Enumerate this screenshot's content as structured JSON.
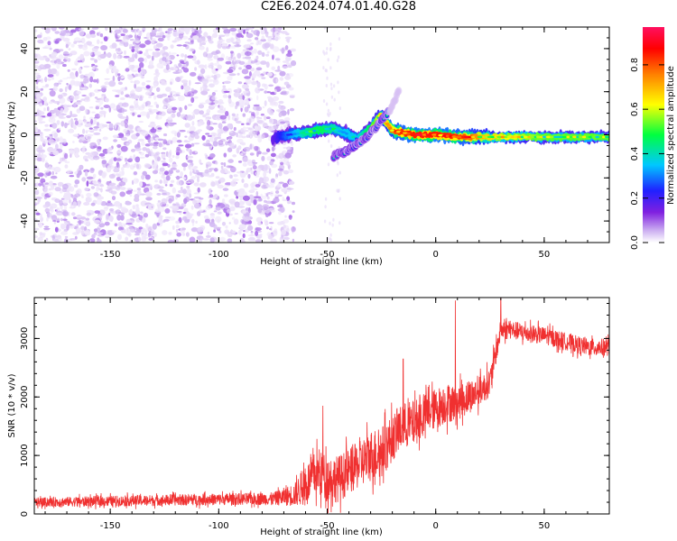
{
  "figure_title": "C2E6.2024.074.01.40.G28",
  "chart_data": [
    {
      "type": "heatmap",
      "title": "",
      "xlabel": "Height of straight line (km)",
      "ylabel": "Frequency (Hz)",
      "xlim": [
        -185,
        80
      ],
      "ylim": [
        -50,
        50
      ],
      "x_ticks": [
        -150,
        -100,
        -50,
        0,
        50
      ],
      "y_ticks": [
        -40,
        -20,
        0,
        20,
        40
      ],
      "colorbar": {
        "label": "Normalized spectral amplitude",
        "range": [
          0,
          0.97
        ],
        "ticks": [
          0.0,
          0.2,
          0.4,
          0.6,
          0.8
        ],
        "colormap": [
          "#ffffff",
          "#c8a8f0",
          "#8020e0",
          "#2020ff",
          "#00c8ff",
          "#00ff40",
          "#ffff00",
          "#ff8000",
          "#ff0000",
          "#ff1060"
        ]
      },
      "noise_region": {
        "x": [
          -185,
          -68
        ],
        "freq": [
          -50,
          50
        ],
        "amplitude": "low"
      },
      "signal_track": [
        {
          "x": -75,
          "freq": -2,
          "amp": 0.25
        },
        {
          "x": -68,
          "freq": 0,
          "amp": 0.4
        },
        {
          "x": -60,
          "freq": 1,
          "amp": 0.5
        },
        {
          "x": -55,
          "freq": 2,
          "amp": 0.55
        },
        {
          "x": -48,
          "freq": 3,
          "amp": 0.5
        },
        {
          "x": -42,
          "freq": 1,
          "amp": 0.45
        },
        {
          "x": -36,
          "freq": -2,
          "amp": 0.45
        },
        {
          "x": -30,
          "freq": 3,
          "amp": 0.55
        },
        {
          "x": -25,
          "freq": 9,
          "amp": 0.7
        },
        {
          "x": -20,
          "freq": 2,
          "amp": 0.8
        },
        {
          "x": -10,
          "freq": 0,
          "amp": 0.9
        },
        {
          "x": 0,
          "freq": 0,
          "amp": 0.9
        },
        {
          "x": 10,
          "freq": -1,
          "amp": 0.85
        },
        {
          "x": 25,
          "freq": -1,
          "amp": 0.7
        },
        {
          "x": 50,
          "freq": -1,
          "amp": 0.6
        },
        {
          "x": 80,
          "freq": -1,
          "amp": 0.6
        }
      ],
      "secondary_branch": [
        {
          "x": -47,
          "freq": -10
        },
        {
          "x": -40,
          "freq": -7
        },
        {
          "x": -33,
          "freq": -2
        },
        {
          "x": -27,
          "freq": 4
        },
        {
          "x": -22,
          "freq": 10
        },
        {
          "x": -17,
          "freq": 20
        }
      ]
    },
    {
      "type": "line",
      "title": "",
      "xlabel": "Height of straight line (km)",
      "ylabel": "SNR (10 * v/v)",
      "xlim": [
        -185,
        80
      ],
      "ylim": [
        0,
        3700
      ],
      "x_ticks": [
        -150,
        -100,
        -50,
        0,
        50
      ],
      "y_ticks": [
        0,
        1000,
        2000,
        3000
      ],
      "series": [
        {
          "color": "#f03030",
          "envelope_x": [
            -185,
            -150,
            -100,
            -75,
            -65,
            -60,
            -55,
            -50,
            -45,
            -40,
            -35,
            -30,
            -25,
            -20,
            -15,
            -10,
            -5,
            0,
            5,
            10,
            15,
            20,
            25,
            28,
            30,
            35,
            40,
            50,
            60,
            70,
            80
          ],
          "mean_y": [
            200,
            220,
            250,
            260,
            330,
            500,
            700,
            620,
            600,
            720,
            850,
            1000,
            1050,
            1300,
            1500,
            1550,
            1700,
            1800,
            1900,
            1900,
            2000,
            2100,
            2250,
            2800,
            3150,
            3150,
            3100,
            3050,
            2950,
            2850,
            2850
          ],
          "noise_amplitude": [
            80,
            90,
            100,
            110,
            200,
            350,
            400,
            400,
            400,
            400,
            400,
            450,
            450,
            400,
            400,
            400,
            350,
            350,
            350,
            300,
            300,
            250,
            250,
            200,
            180,
            160,
            160,
            150,
            150,
            150,
            150
          ],
          "spikes": [
            {
              "x": 9,
              "y": 3650
            },
            {
              "x": -15,
              "y": 2650
            },
            {
              "x": -52,
              "y": 1850
            },
            {
              "x": 30,
              "y": 3700
            }
          ]
        }
      ]
    }
  ]
}
